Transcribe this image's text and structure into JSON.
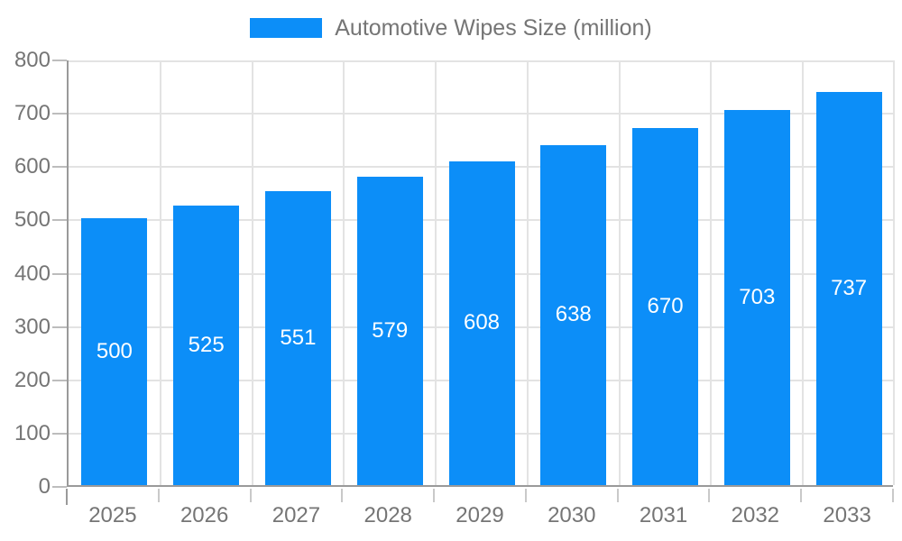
{
  "legend": {
    "label": "Automotive Wipes Size (million)",
    "swatch_color": "#0c8ef8"
  },
  "chart_data": {
    "type": "bar",
    "title": "",
    "xlabel": "",
    "ylabel": "",
    "categories": [
      "2025",
      "2026",
      "2027",
      "2028",
      "2029",
      "2030",
      "2031",
      "2032",
      "2033"
    ],
    "series": [
      {
        "name": "Automotive Wipes Size (million)",
        "values": [
          500,
          525,
          551,
          579,
          608,
          638,
          670,
          703,
          737
        ]
      }
    ],
    "value_labels_shown": true,
    "ylim": [
      0,
      800
    ],
    "yticks": [
      0,
      100,
      200,
      300,
      400,
      500,
      600,
      700,
      800
    ],
    "grid": true,
    "legend_position": "top-center"
  },
  "colors": {
    "bar": "#0c8ef8",
    "bar_value_text": "#ffffff",
    "axis_text": "#757575",
    "gridline": "#e3e3e3",
    "axis_line": "#9a9a9a",
    "background": "#ffffff"
  }
}
